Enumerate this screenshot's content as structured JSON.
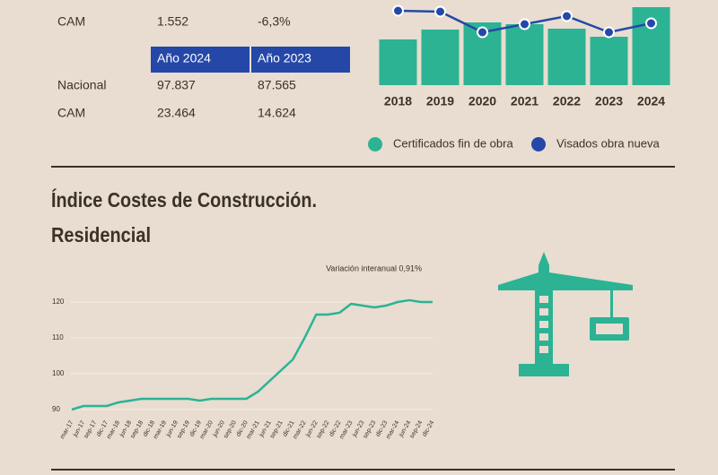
{
  "table": {
    "header": [
      "Año 2024",
      "Año 2023"
    ],
    "pre_row": [
      "CAM",
      "1.552",
      "-6,3%"
    ],
    "rows": [
      [
        "Nacional",
        "97.837",
        "87.565"
      ],
      [
        "CAM",
        "23.464",
        "14.624"
      ]
    ]
  },
  "chart_data": [
    {
      "type": "bar-line",
      "categories": [
        "2018",
        "2019",
        "2020",
        "2021",
        "2022",
        "2023",
        "2024"
      ],
      "ylim": [
        0,
        95
      ],
      "series": [
        {
          "name": "Certificados fin de obra",
          "color": "#2bb394",
          "values": [
            51,
            62,
            70,
            68,
            63,
            54,
            87
          ]
        },
        {
          "name": "Visados obra nueva",
          "color": "#2548a8",
          "values": [
            83,
            82,
            59,
            68,
            77,
            59,
            69
          ]
        }
      ]
    },
    {
      "type": "line",
      "title": "Índice Costes de Construcción.",
      "subtitle": "Residencial",
      "annotation": "Variación interanual 0,91%",
      "color": "#2bb394",
      "ylim": [
        88,
        122
      ],
      "yticks": [
        90,
        100,
        110,
        120
      ],
      "grid": true,
      "categories": [
        "mar-17",
        "jun-17",
        "sep-17",
        "dic-17",
        "mar-18",
        "jun-18",
        "sep-18",
        "dic-18",
        "mar-19",
        "jun-19",
        "sep-19",
        "dic-19",
        "mar-20",
        "jun-20",
        "sep-20",
        "dic-20",
        "mar-21",
        "jun-21",
        "sep-21",
        "dic-21",
        "mar-22",
        "jun-22",
        "sep-22",
        "dic-22",
        "mar-23",
        "jun-23",
        "sep-23",
        "dic-23",
        "mar-24",
        "jun-24",
        "sep-24",
        "dic-24"
      ],
      "values": [
        90,
        91,
        91,
        91,
        92,
        92.5,
        93,
        93,
        93,
        93,
        93,
        92.5,
        93,
        93,
        93,
        93,
        95,
        98,
        101,
        104,
        110,
        116.5,
        116.5,
        117,
        119.5,
        119,
        118.5,
        119,
        120,
        120.5,
        120,
        120
      ]
    }
  ]
}
